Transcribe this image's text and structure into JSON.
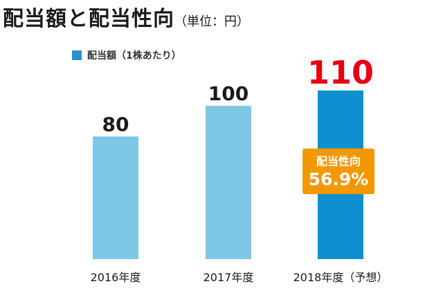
{
  "title": {
    "main": "配当額と配当性向",
    "unit": "（単位：円）"
  },
  "legend": {
    "label": "配当額（1株あたり）",
    "color": "#2f8fce"
  },
  "callout": {
    "label": "配当性向",
    "value": "56.9%",
    "color": "#f39800"
  },
  "chart_data": {
    "type": "bar",
    "categories": [
      "2016年度",
      "2017年度",
      "2018年度（予想）"
    ],
    "series": [
      {
        "name": "配当額（1株あたり）",
        "values": [
          80,
          100,
          110
        ]
      }
    ],
    "data_labels": [
      "80",
      "100",
      "110"
    ],
    "ylim": [
      0,
      110
    ],
    "bar_colors": [
      "#7ec7e6",
      "#7ec7e6",
      "#0f8fcf"
    ],
    "label_colors": [
      "#1a1a1a",
      "#1a1a1a",
      "#e60012"
    ],
    "grid": false,
    "legend_position": "top-left"
  }
}
